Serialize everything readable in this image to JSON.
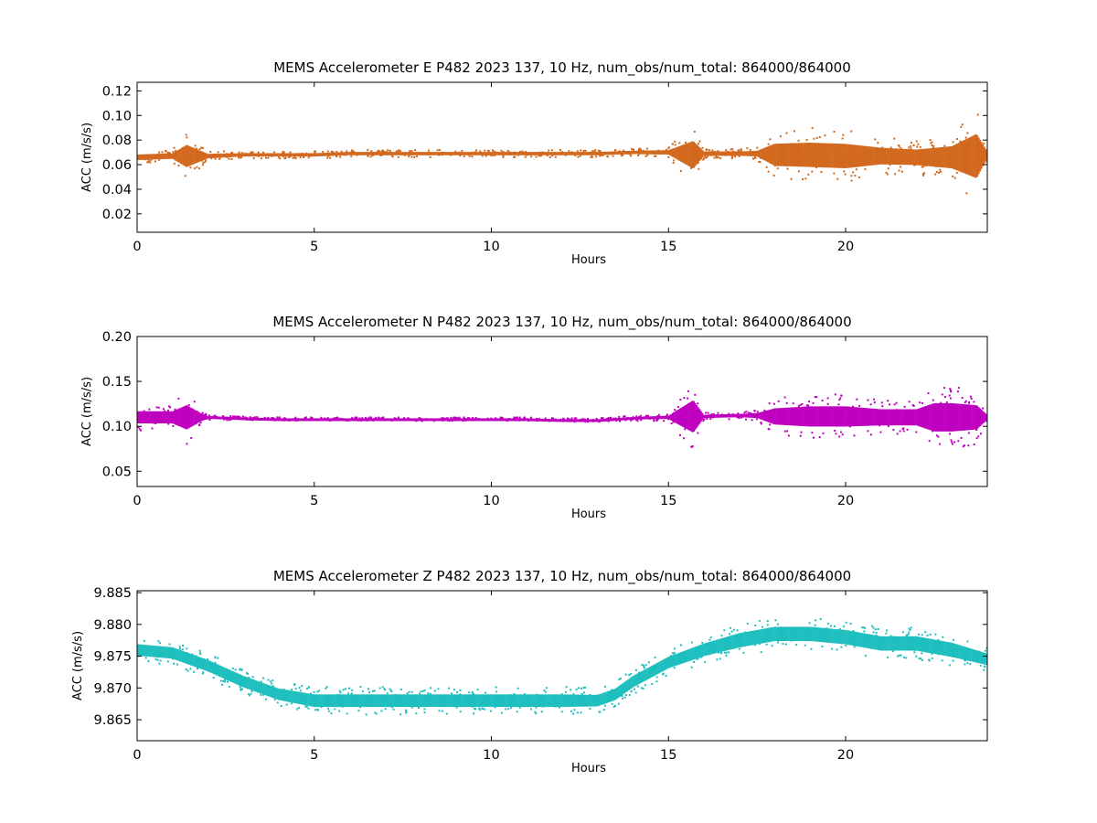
{
  "chart_data": [
    {
      "type": "scatter",
      "title": "MEMS Accelerometer E P482 2023 137, 10 Hz, num_obs/num_total: 864000/864000",
      "xlabel": "Hours",
      "ylabel": "ACC (m/s/s)",
      "xlim": [
        0,
        24
      ],
      "ylim": [
        0.005,
        0.127
      ],
      "xticks": [
        "0",
        "5",
        "10",
        "15",
        "20"
      ],
      "xtick_values": [
        0,
        5,
        10,
        15,
        20
      ],
      "yticks": [
        "0.02",
        "0.04",
        "0.06",
        "0.08",
        "0.10",
        "0.12"
      ],
      "ytick_values": [
        0.02,
        0.04,
        0.06,
        0.08,
        0.1,
        0.12
      ],
      "grid": false,
      "color": "#d2691e",
      "series": [
        {
          "x": [
            0,
            1,
            1.4,
            2,
            3,
            4,
            5,
            6,
            7,
            8,
            9,
            10,
            11,
            12,
            13,
            14,
            15,
            15.7,
            16,
            17,
            17.5,
            18,
            19,
            20,
            21,
            22,
            23,
            23.7,
            24
          ],
          "y": [
            0.066,
            0.067,
            0.067,
            0.067,
            0.068,
            0.068,
            0.068,
            0.069,
            0.069,
            0.069,
            0.069,
            0.069,
            0.069,
            0.069,
            0.069,
            0.07,
            0.07,
            0.068,
            0.069,
            0.069,
            0.069,
            0.068,
            0.068,
            0.067,
            0.067,
            0.066,
            0.066,
            0.067,
            0.068
          ],
          "spread": [
            0.005,
            0.005,
            0.02,
            0.004,
            0.003,
            0.003,
            0.003,
            0.003,
            0.003,
            0.003,
            0.003,
            0.003,
            0.003,
            0.003,
            0.003,
            0.003,
            0.004,
            0.025,
            0.004,
            0.004,
            0.005,
            0.02,
            0.022,
            0.022,
            0.015,
            0.014,
            0.02,
            0.04,
            0.006
          ]
        }
      ]
    },
    {
      "type": "scatter",
      "title": "MEMS Accelerometer N P482 2023 137, 10 Hz, num_obs/num_total: 864000/864000",
      "xlabel": "Hours",
      "ylabel": "ACC (m/s/s)",
      "xlim": [
        0,
        24
      ],
      "ylim": [
        0.033,
        0.2
      ],
      "xticks": [
        "0",
        "5",
        "10",
        "15",
        "20"
      ],
      "xtick_values": [
        0,
        5,
        10,
        15,
        20
      ],
      "yticks": [
        "0.05",
        "0.10",
        "0.15",
        "0.20"
      ],
      "ytick_values": [
        0.05,
        0.1,
        0.15,
        0.2
      ],
      "grid": false,
      "color": "#bf00bf",
      "series": [
        {
          "x": [
            0,
            1,
            1.4,
            1.8,
            2,
            3,
            4,
            5,
            6,
            7,
            8,
            9,
            10,
            11,
            12,
            13,
            14,
            15,
            15.7,
            16,
            17,
            17.5,
            18,
            19,
            20,
            21,
            22,
            22.5,
            23,
            23.7,
            24
          ],
          "y": [
            0.11,
            0.11,
            0.11,
            0.11,
            0.11,
            0.109,
            0.108,
            0.108,
            0.108,
            0.108,
            0.108,
            0.108,
            0.108,
            0.108,
            0.107,
            0.107,
            0.109,
            0.11,
            0.111,
            0.111,
            0.112,
            0.112,
            0.111,
            0.111,
            0.111,
            0.11,
            0.11,
            0.11,
            0.11,
            0.11,
            0.11
          ],
          "spread": [
            0.015,
            0.015,
            0.03,
            0.01,
            0.003,
            0.002,
            0.002,
            0.002,
            0.002,
            0.002,
            0.002,
            0.002,
            0.002,
            0.002,
            0.002,
            0.002,
            0.003,
            0.004,
            0.04,
            0.004,
            0.004,
            0.006,
            0.02,
            0.025,
            0.025,
            0.02,
            0.02,
            0.035,
            0.035,
            0.03,
            0.006
          ]
        }
      ]
    },
    {
      "type": "scatter",
      "title": "MEMS Accelerometer Z P482 2023 137, 10 Hz, num_obs/num_total: 864000/864000",
      "xlabel": "Hours",
      "ylabel": "ACC (m/s/s)",
      "xlim": [
        0,
        24
      ],
      "ylim": [
        9.8617,
        9.8853
      ],
      "xticks": [
        "0",
        "5",
        "10",
        "15",
        "20"
      ],
      "xtick_values": [
        0,
        5,
        10,
        15,
        20
      ],
      "yticks": [
        "9.865",
        "9.870",
        "9.875",
        "9.880",
        "9.885"
      ],
      "ytick_values": [
        9.865,
        9.87,
        9.875,
        9.88,
        9.885
      ],
      "grid": false,
      "color": "#1fbfbf",
      "series": [
        {
          "x": [
            0,
            1,
            2,
            3,
            4,
            5,
            6,
            7,
            8,
            9,
            10,
            11,
            12,
            13,
            13.5,
            14,
            15,
            16,
            17,
            18,
            19,
            20,
            21,
            22,
            23,
            24
          ],
          "y": [
            9.876,
            9.8755,
            9.8735,
            9.871,
            9.869,
            9.868,
            9.868,
            9.868,
            9.868,
            9.868,
            9.868,
            9.868,
            9.868,
            9.868,
            9.869,
            9.871,
            9.874,
            9.876,
            9.8775,
            9.8785,
            9.8785,
            9.878,
            9.877,
            9.877,
            9.876,
            9.8745
          ],
          "spread": [
            0.002,
            0.002,
            0.002,
            0.002,
            0.002,
            0.0022,
            0.0022,
            0.0022,
            0.0022,
            0.0022,
            0.0022,
            0.0022,
            0.0022,
            0.002,
            0.002,
            0.002,
            0.002,
            0.0022,
            0.0025,
            0.0025,
            0.0025,
            0.0025,
            0.0025,
            0.0025,
            0.0025,
            0.002
          ]
        }
      ]
    }
  ]
}
